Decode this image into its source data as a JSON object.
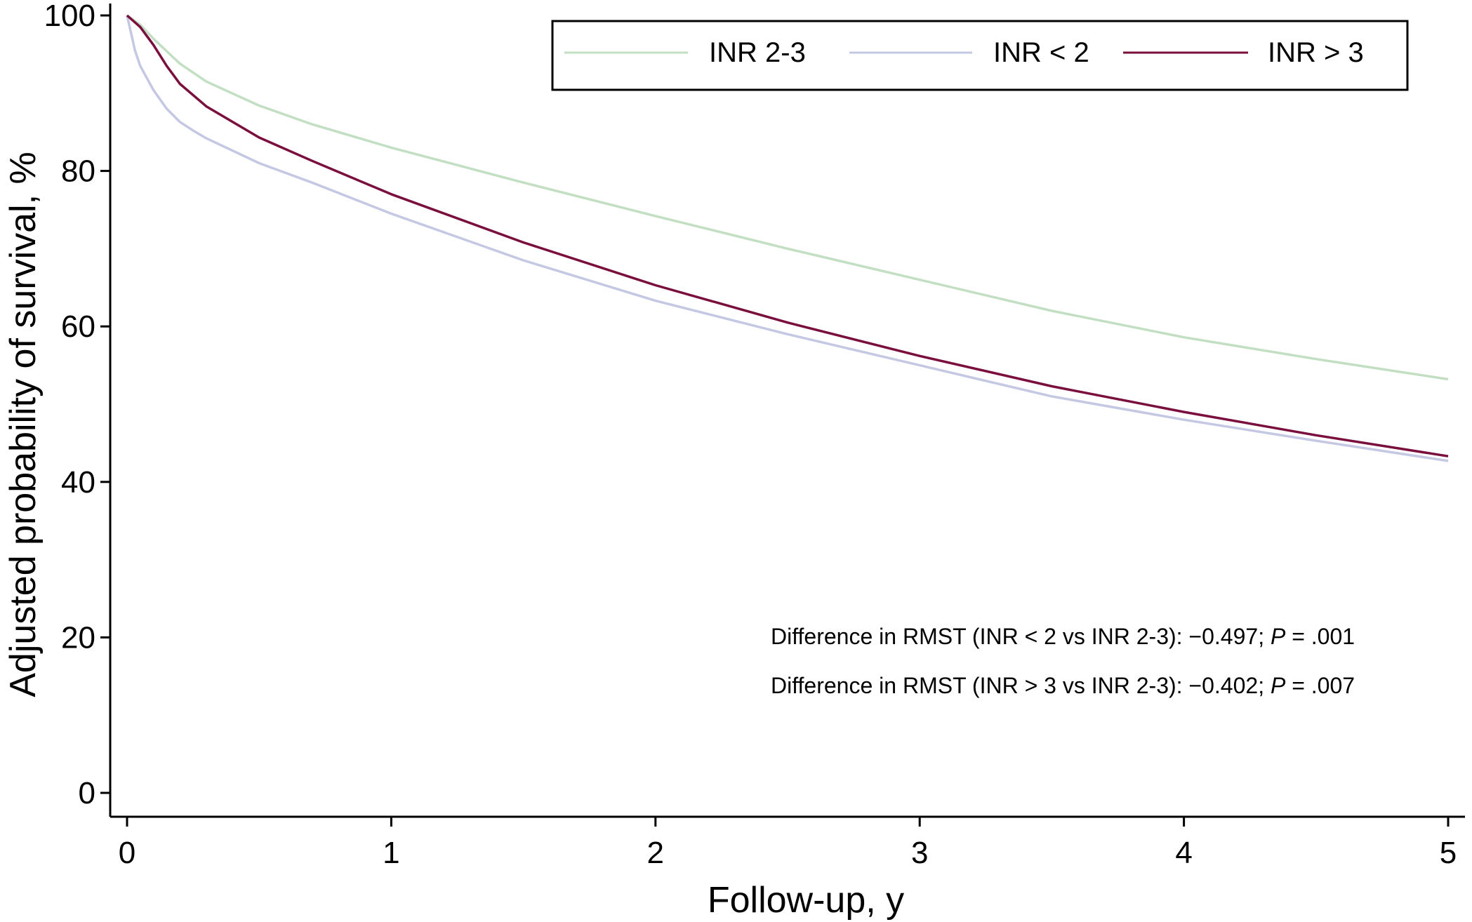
{
  "chart_data": {
    "type": "line",
    "title": "",
    "xlabel": "Follow-up, y",
    "ylabel": "Adjusted probability of survival, %",
    "xlim": [
      0,
      5
    ],
    "ylim": [
      0,
      100
    ],
    "xticks": [
      "0",
      "1",
      "2",
      "3",
      "4",
      "5"
    ],
    "yticks": [
      "0",
      "20",
      "40",
      "60",
      "80",
      "100"
    ],
    "grid": false,
    "legend_position": "top-right",
    "series": [
      {
        "name": "INR 2-3",
        "color": "#c3dfc3",
        "x": [
          0,
          0.05,
          0.1,
          0.2,
          0.3,
          0.5,
          0.7,
          1,
          1.5,
          2,
          2.5,
          3,
          3.5,
          4,
          4.5,
          5
        ],
        "y": [
          100,
          98.8,
          97,
          93.8,
          91.5,
          88.4,
          86,
          83,
          78.5,
          74.2,
          70,
          66,
          62,
          58.6,
          55.8,
          53.2
        ]
      },
      {
        "name": "INR < 2",
        "color": "#c5c8e3",
        "x": [
          0,
          0.03,
          0.05,
          0.1,
          0.15,
          0.2,
          0.25,
          0.3,
          0.5,
          0.7,
          1,
          1.5,
          2,
          2.5,
          3,
          3.5,
          4,
          4.5,
          5
        ],
        "y": [
          100,
          95.5,
          93.5,
          90.4,
          88,
          86.3,
          85.2,
          84.2,
          81,
          78.5,
          74.5,
          68.5,
          63.3,
          59,
          55,
          51,
          48,
          45.3,
          42.7
        ]
      },
      {
        "name": "INR > 3",
        "color": "#7a0f3e",
        "x": [
          0,
          0.05,
          0.1,
          0.15,
          0.2,
          0.3,
          0.5,
          0.7,
          1,
          1.5,
          2,
          2.5,
          3,
          3.5,
          4,
          4.5,
          5
        ],
        "y": [
          100,
          98.5,
          96.2,
          93.5,
          91.2,
          88.3,
          84.3,
          81.3,
          77,
          70.8,
          65.3,
          60.5,
          56.2,
          52.3,
          49,
          46,
          43.3
        ]
      }
    ],
    "annotations": [
      {
        "pre": "Difference in RMST (INR < 2 vs INR 2-3): −0.497; ",
        "italic": "P",
        "post": "  = .001"
      },
      {
        "pre": "Difference in RMST (INR > 3 vs INR 2-3): −0.402; ",
        "italic": "P",
        "post": "  = .007"
      }
    ]
  }
}
